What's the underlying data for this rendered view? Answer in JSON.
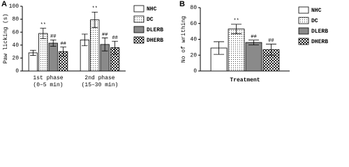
{
  "charts": [
    {
      "chart_data": {
        "type": "bar",
        "panel_label": "A",
        "ylabel": "Paw licking (s)",
        "categories": [
          [
            "1st phase",
            "(0–5 min)"
          ],
          [
            "2nd phase",
            "(15–30 min)"
          ]
        ],
        "series": [
          {
            "name": "NHC",
            "color": "#ffffff",
            "fill": "solid",
            "values": [
              28,
              48
            ],
            "errors": [
              4,
              9
            ]
          },
          {
            "name": "DC",
            "color": "#ffffff",
            "fill": "dots",
            "values": [
              58,
              79
            ],
            "errors": [
              8,
              12
            ]
          },
          {
            "name": "DLERB",
            "color": "#8a8a8a",
            "fill": "solid",
            "values": [
              43,
              41
            ],
            "errors": [
              5,
              10
            ]
          },
          {
            "name": "DHERB",
            "color": "#ffffff",
            "fill": "checker",
            "values": [
              30,
              36
            ],
            "errors": [
              7,
              10
            ]
          }
        ],
        "annotations": [
          {
            "text": "**",
            "series": 1,
            "category": 0
          },
          {
            "text": "##",
            "series": 2,
            "category": 0
          },
          {
            "text": "##",
            "series": 3,
            "category": 0
          },
          {
            "text": "**",
            "series": 1,
            "category": 1
          },
          {
            "text": "##",
            "series": 2,
            "category": 1
          },
          {
            "text": "##",
            "series": 3,
            "category": 1
          }
        ],
        "ylim": [
          0,
          100
        ],
        "yticks": [
          0,
          20,
          40,
          60,
          80,
          100
        ],
        "legend": "right"
      }
    },
    {
      "chart_data": {
        "type": "bar",
        "panel_label": "B",
        "ylabel": "No of writhing",
        "xlabel": "Treatment",
        "categories": [
          null
        ],
        "series": [
          {
            "name": "NHC",
            "color": "#ffffff",
            "fill": "solid",
            "values": [
              29
            ],
            "errors": [
              8
            ]
          },
          {
            "name": "DC",
            "color": "#ffffff",
            "fill": "dots",
            "values": [
              53
            ],
            "errors": [
              6
            ]
          },
          {
            "name": "DLERB",
            "color": "#8a8a8a",
            "fill": "solid",
            "values": [
              36
            ],
            "errors": [
              3
            ]
          },
          {
            "name": "DHERB",
            "color": "#ffffff",
            "fill": "checker",
            "values": [
              27
            ],
            "errors": [
              7
            ]
          }
        ],
        "annotations": [
          {
            "text": "**",
            "series": 1,
            "category": 0
          },
          {
            "text": "##",
            "series": 2,
            "category": 0
          },
          {
            "text": "##",
            "series": 3,
            "category": 0
          }
        ],
        "ylim": [
          0,
          80
        ],
        "yticks": [
          0,
          20,
          40,
          60,
          80
        ],
        "legend": "right"
      }
    }
  ]
}
